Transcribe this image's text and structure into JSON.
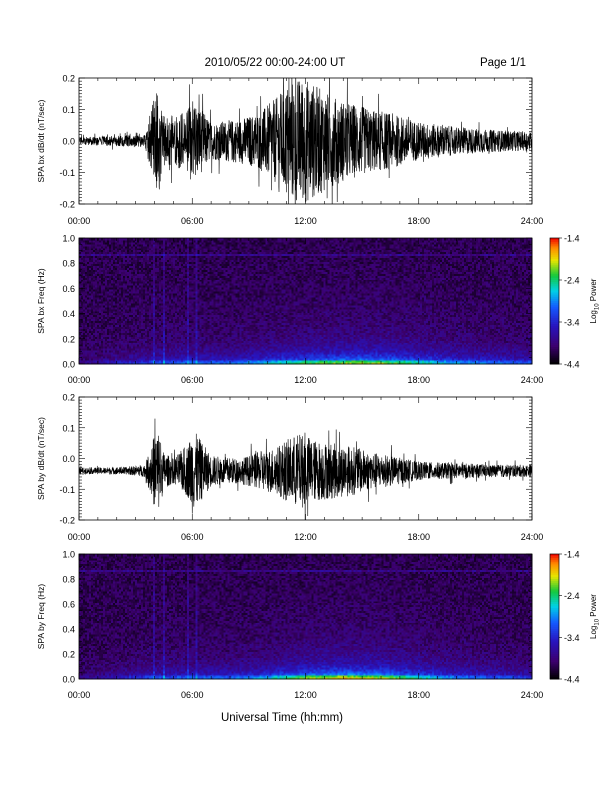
{
  "header": {
    "title": "2010/05/22  00:00-24:00 UT",
    "page": "Page 1/1"
  },
  "xaxis": {
    "label": "Universal Time (hh:mm)",
    "ticks": [
      "00:00",
      "06:00",
      "12:00",
      "18:00",
      "24:00"
    ],
    "range_hours": [
      0,
      24
    ]
  },
  "colorbar": {
    "label": "Log10 Power",
    "label_base": "Log",
    "label_sub": "10",
    "label_rest": " Power",
    "ticks": [
      "-1.4",
      "-2.4",
      "-3.4",
      "-4.4"
    ],
    "range": [
      -4.4,
      -1.4
    ]
  },
  "chart_data": [
    {
      "type": "line",
      "id": "bx-time",
      "ylabel": "SPA bx dB/dt (nT/sec)",
      "ylim": [
        -0.2,
        0.2
      ],
      "yticks": [
        "0.2",
        "0.1",
        "0.0",
        "-0.1",
        "-0.2"
      ],
      "x_hours": [
        0,
        3.5,
        4.0,
        4.2,
        4.4,
        5.0,
        5.8,
        6.0,
        7.0,
        8.5,
        9.5,
        10.5,
        11.0,
        11.5,
        12.0,
        12.5,
        13.5,
        14.5,
        15.5,
        16.5,
        18.0,
        20.0,
        22.0,
        24.0
      ],
      "amplitude": [
        0.012,
        0.02,
        0.15,
        0.2,
        0.08,
        0.08,
        0.1,
        0.14,
        0.06,
        0.07,
        0.09,
        0.14,
        0.18,
        0.2,
        0.2,
        0.18,
        0.14,
        0.12,
        0.1,
        0.09,
        0.06,
        0.045,
        0.035,
        0.03
      ],
      "baseline": 0.0
    },
    {
      "type": "heatmap",
      "id": "bx-freq",
      "ylabel": "SPA bx Freq (Hz)",
      "ylim": [
        0,
        1.0
      ],
      "yticks": [
        "1.0",
        "0.8",
        "0.6",
        "0.4",
        "0.2",
        "0.0"
      ],
      "zlim": [
        -4.4,
        -1.4
      ],
      "spike_hours": [
        4.0,
        4.5,
        5.8,
        6.2
      ],
      "activity_hours": [
        0,
        4,
        6,
        8,
        10,
        12,
        14,
        16,
        18,
        20,
        24
      ],
      "activity_level": [
        0.1,
        0.4,
        0.45,
        0.45,
        0.6,
        0.75,
        0.85,
        0.85,
        0.7,
        0.55,
        0.4
      ]
    },
    {
      "type": "line",
      "id": "by-time",
      "ylabel": "SPA by dB/dt (nT/sec)",
      "ylim": [
        -0.2,
        0.2
      ],
      "yticks": [
        "0.2",
        "0.1",
        "0.0",
        "-0.1",
        "-0.2"
      ],
      "x_hours": [
        0,
        2.5,
        3.5,
        4.0,
        4.2,
        4.5,
        5.0,
        5.8,
        6.0,
        7.0,
        8.5,
        9.5,
        10.5,
        11.5,
        12.0,
        12.5,
        13.5,
        14.5,
        15.5,
        16.5,
        18.0,
        20.0,
        22.0,
        24.0
      ],
      "amplitude": [
        0.01,
        0.012,
        0.02,
        0.12,
        0.14,
        0.06,
        0.04,
        0.09,
        0.14,
        0.05,
        0.04,
        0.06,
        0.08,
        0.12,
        0.12,
        0.1,
        0.09,
        0.08,
        0.06,
        0.05,
        0.03,
        0.025,
        0.02,
        0.02
      ],
      "baseline": -0.04
    },
    {
      "type": "heatmap",
      "id": "by-freq",
      "ylabel": "SPA by Freq (Hz)",
      "ylim": [
        0,
        1.0
      ],
      "yticks": [
        "1.0",
        "0.8",
        "0.6",
        "0.4",
        "0.2",
        "0.0"
      ],
      "zlim": [
        -4.4,
        -1.4
      ],
      "spike_hours": [
        4.0,
        4.5,
        5.8,
        6.2
      ],
      "activity_hours": [
        0,
        4,
        6,
        8,
        10,
        12,
        14,
        16,
        18,
        20,
        24
      ],
      "activity_level": [
        0.1,
        0.4,
        0.45,
        0.45,
        0.6,
        0.85,
        0.95,
        0.9,
        0.7,
        0.5,
        0.35
      ]
    }
  ]
}
